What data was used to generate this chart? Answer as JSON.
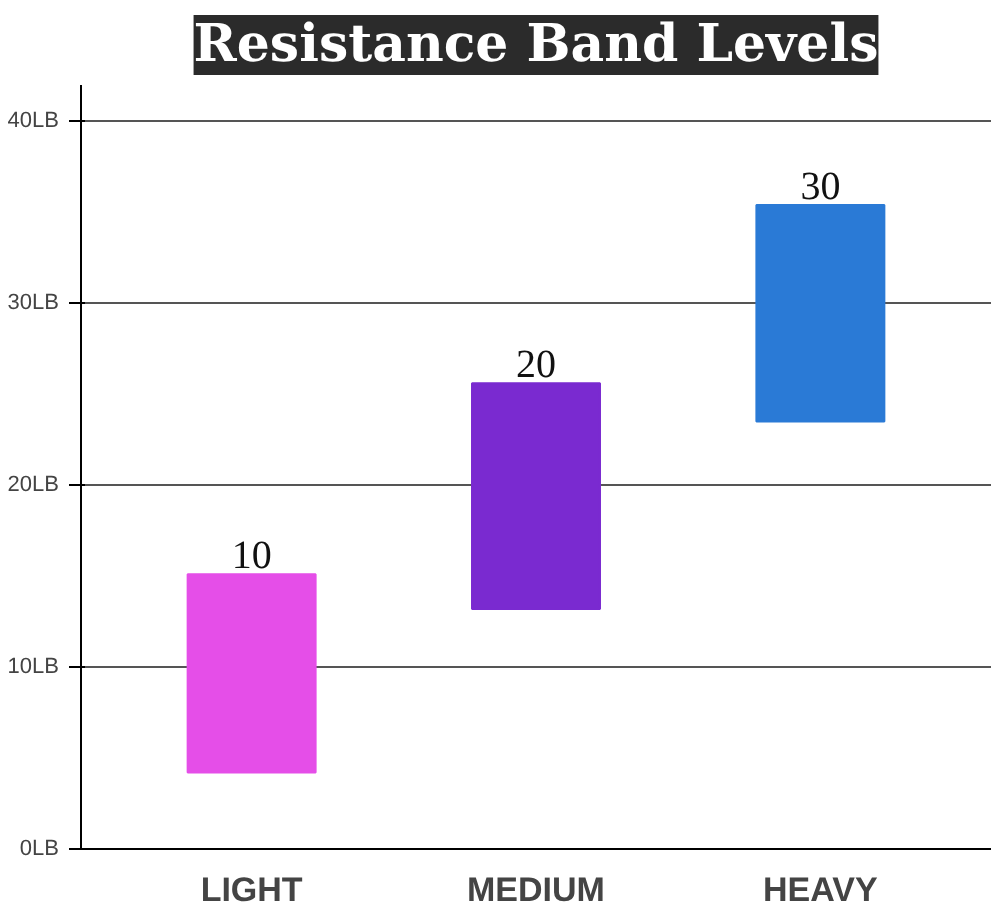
{
  "chart_data": {
    "type": "bar",
    "title": "Resistance Band Levels",
    "categories": [
      "LIGHT",
      "MEDIUM",
      "HEAVY"
    ],
    "base": [
      4.2,
      13.2,
      23.5
    ],
    "values": [
      10.9,
      12.4,
      11.9
    ],
    "colors": [
      "#e54ee8",
      "#7a2ad0",
      "#2a7ad6"
    ],
    "annotations": [
      {
        "text": "10",
        "x": "LIGHT",
        "y": 15.1
      },
      {
        "text": "20",
        "x": "MEDIUM",
        "y": 25.6
      },
      {
        "text": "30",
        "x": "HEAVY",
        "y": 35.4
      }
    ],
    "ylim": [
      0,
      42
    ],
    "yticks": [
      {
        "value": 0,
        "label": "0LB"
      },
      {
        "value": 10,
        "label": "10LB"
      },
      {
        "value": 20,
        "label": "20LB"
      },
      {
        "value": 30,
        "label": "30LB"
      },
      {
        "value": 40,
        "label": "40LB"
      }
    ],
    "grid": "y"
  }
}
